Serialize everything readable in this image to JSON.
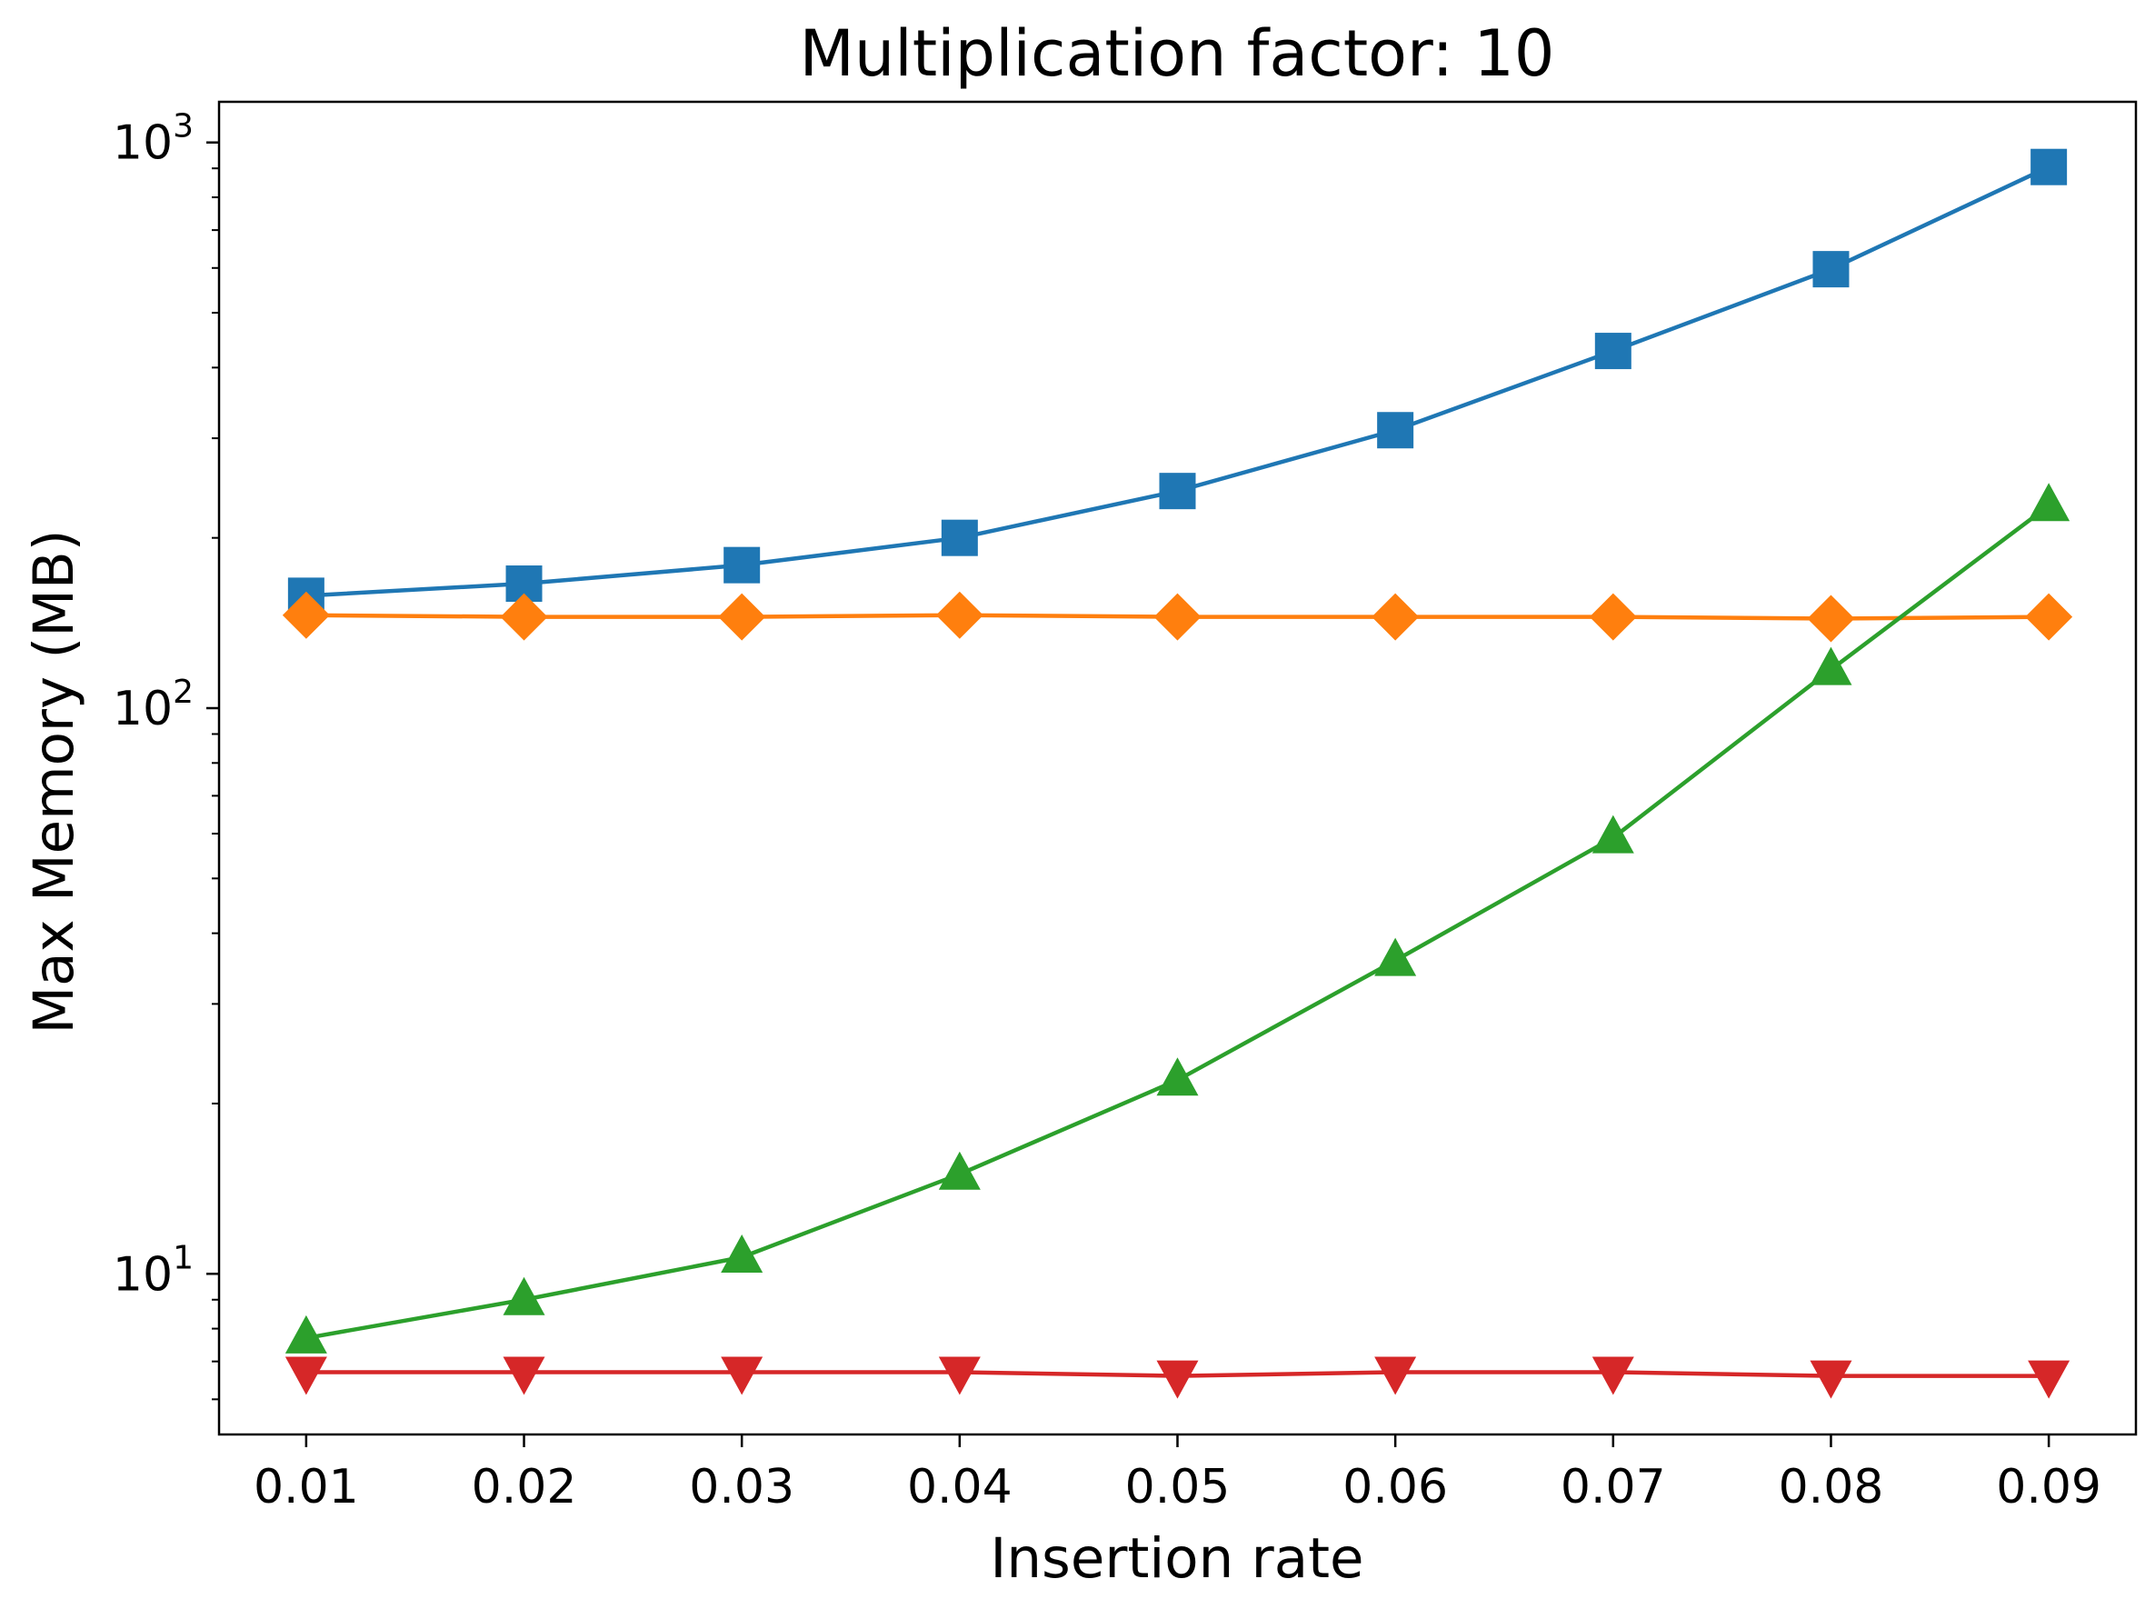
{
  "chart_data": {
    "type": "line",
    "title": "Multiplication factor: 10",
    "xlabel": "Insertion rate",
    "ylabel": "Max Memory (MB)",
    "yscale": "log",
    "xlim": [
      0.006,
      0.094
    ],
    "ylim": [
      5.2,
      1180
    ],
    "x": [
      0.01,
      0.02,
      0.03,
      0.04,
      0.05,
      0.06,
      0.07,
      0.08,
      0.09
    ],
    "x_tick_labels": [
      "0.01",
      "0.02",
      "0.03",
      "0.04",
      "0.05",
      "0.06",
      "0.07",
      "0.08",
      "0.09"
    ],
    "y_ticks": [
      {
        "value": 10,
        "base": "10",
        "exp": "1"
      },
      {
        "value": 100,
        "base": "10",
        "exp": "2"
      },
      {
        "value": 1000,
        "base": "10",
        "exp": "3"
      }
    ],
    "grid": false,
    "legend": "none",
    "series": [
      {
        "color": "#1f77b4",
        "marker": "square",
        "values": [
          158,
          166,
          179,
          200,
          242,
          310,
          428,
          597,
          905
        ]
      },
      {
        "color": "#ff7f0e",
        "marker": "diamond",
        "values": [
          146,
          145,
          145,
          146,
          145,
          145,
          145,
          144,
          145
        ]
      },
      {
        "color": "#2ca02c",
        "marker": "triangle-up",
        "values": [
          7.7,
          9.0,
          10.7,
          15.0,
          22.0,
          35.8,
          59.0,
          117,
          228
        ]
      },
      {
        "color": "#d62728",
        "marker": "triangle-down",
        "values": [
          6.7,
          6.7,
          6.7,
          6.7,
          6.6,
          6.7,
          6.7,
          6.6,
          6.6
        ]
      }
    ]
  }
}
